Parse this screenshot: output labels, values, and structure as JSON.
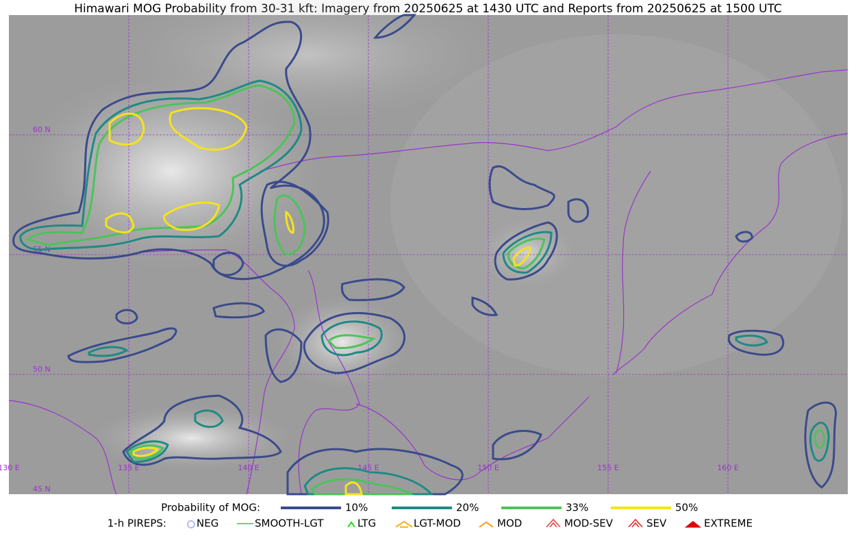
{
  "title": "Himawari MOG Probability from 30-31 kft: Imagery from 20250625 at 1430 UTC and Reports from 20250625 at 1500 UTC",
  "grid_labels": {
    "lon": [
      "130 E",
      "135 E",
      "140 E",
      "145 E",
      "150 E",
      "155 E",
      "160 E"
    ],
    "lat": [
      "60 N",
      "55 N",
      "50 N",
      "45 N"
    ]
  },
  "legend": {
    "probability": {
      "label": "Probability of MOG:",
      "items": [
        {
          "label": "10%",
          "color": "#3a4a8c"
        },
        {
          "label": "20%",
          "color": "#1e8a84"
        },
        {
          "label": "33%",
          "color": "#4cc35a"
        },
        {
          "label": "50%",
          "color": "#f5e31a"
        }
      ]
    },
    "pireps": {
      "label": "1-h PIREPS:",
      "items": [
        {
          "label": "NEG",
          "color": "#b9b9f0"
        },
        {
          "label": "SMOOTH-LGT",
          "color": "#33cc33"
        },
        {
          "label": "LTG",
          "color": "#22dd22"
        },
        {
          "label": "LGT-MOD",
          "color": "#f5b31a"
        },
        {
          "label": "MOD",
          "color": "#f5a21a"
        },
        {
          "label": "MOD-SEV",
          "color": "#e83a3a"
        },
        {
          "label": "SEV",
          "color": "#e82020"
        },
        {
          "label": "EXTREME",
          "color": "#e00000"
        }
      ]
    }
  }
}
